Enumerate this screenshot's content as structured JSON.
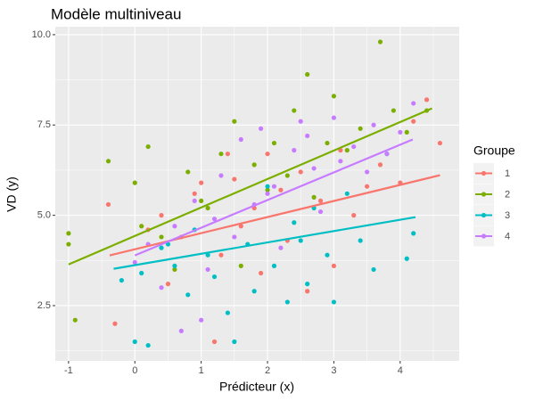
{
  "chart_data": {
    "type": "scatter",
    "title": "Modèle multiniveau",
    "x_label": "Prédicteur (x)",
    "y_label": "VD (y)",
    "legend_title": "Groupe",
    "legend": "right",
    "grid": true,
    "xlim": [
      -1.2,
      4.89
    ],
    "ylim": [
      0.97,
      10.22
    ],
    "xticks": [
      -1,
      0,
      1,
      2,
      3,
      4
    ],
    "yticks": [
      {
        "value": 2.5,
        "label": "2.5"
      },
      {
        "value": 5,
        "label": "5.0"
      },
      {
        "value": 7.5,
        "label": "7.5"
      },
      {
        "value": 10,
        "label": "10.0"
      }
    ],
    "series": [
      {
        "name": "1",
        "color": "#F8766D",
        "x": [
          -0.4,
          -0.3,
          0.2,
          0.4,
          0.5,
          0.7,
          0.9,
          1.0,
          1.2,
          1.3,
          1.5,
          1.6,
          1.8,
          1.9,
          2.0,
          2.2,
          2.3,
          2.5,
          2.6,
          2.8,
          3.0,
          3.1,
          3.3,
          3.5,
          3.7,
          4.0,
          4.2,
          4.4,
          4.6,
          1.4
        ],
        "y": [
          5.3,
          2.0,
          4.6,
          5.0,
          3.1,
          4.4,
          5.6,
          5.9,
          1.5,
          3.9,
          6.0,
          4.7,
          5.2,
          3.4,
          6.7,
          5.7,
          4.3,
          6.2,
          2.9,
          5.4,
          3.6,
          6.8,
          5.0,
          5.8,
          6.4,
          5.9,
          7.6,
          8.2,
          7.0,
          6.7
        ],
        "fit": {
          "x": [
            -0.38,
            4.6
          ],
          "y": [
            3.89,
            6.11
          ]
        }
      },
      {
        "name": "2",
        "color": "#7CAE00",
        "x": [
          -1.0,
          -1.0,
          -0.9,
          -0.4,
          0,
          0.1,
          0.2,
          0.4,
          0.6,
          0.8,
          1.0,
          1.1,
          1.3,
          1.5,
          1.6,
          1.8,
          2.0,
          2.1,
          2.3,
          2.4,
          2.6,
          2.7,
          2.9,
          3.0,
          3.2,
          3.4,
          3.7,
          3.9,
          4.1,
          4.4
        ],
        "y": [
          4.2,
          4.5,
          2.1,
          6.5,
          5.9,
          4.7,
          6.9,
          4.4,
          3.5,
          6.2,
          5.4,
          5.2,
          6.7,
          7.6,
          3.6,
          6.4,
          5.7,
          7.0,
          6.1,
          7.9,
          8.9,
          5.5,
          7.0,
          8.3,
          6.8,
          7.4,
          9.8,
          7.9,
          7.3,
          7.9
        ],
        "fit": {
          "x": [
            -1.0,
            4.48
          ],
          "y": [
            3.64,
            7.96
          ]
        }
      },
      {
        "name": "3",
        "color": "#00BFC4",
        "x": [
          -0.2,
          0,
          0.1,
          0.2,
          0.4,
          0.6,
          0.8,
          0.9,
          1.1,
          1.2,
          1.4,
          1.5,
          1.7,
          1.8,
          2.0,
          2.1,
          2.3,
          2.4,
          2.6,
          2.7,
          2.9,
          3.0,
          3.2,
          3.4,
          3.6,
          3.8,
          4.1,
          4.2,
          0.5,
          2.5
        ],
        "y": [
          3.2,
          1.5,
          3.4,
          1.4,
          4.1,
          3.6,
          2.8,
          4.6,
          3.9,
          3.3,
          2.3,
          1.5,
          4.2,
          2.9,
          5.8,
          3.6,
          2.6,
          4.8,
          3.1,
          5.2,
          3.9,
          2.6,
          5.6,
          4.3,
          3.5,
          6.7,
          3.8,
          4.5,
          4.2,
          4.3
        ],
        "fit": {
          "x": [
            -0.32,
            4.23
          ],
          "y": [
            3.52,
            4.95
          ]
        }
      },
      {
        "name": "4",
        "color": "#C77CFF",
        "x": [
          0,
          0.2,
          0.4,
          0.6,
          0.7,
          0.9,
          1.0,
          1.2,
          1.3,
          1.5,
          1.6,
          1.8,
          1.9,
          2.1,
          2.2,
          2.4,
          2.5,
          2.7,
          2.8,
          3.0,
          3.1,
          3.3,
          3.5,
          3.6,
          3.8,
          4.0,
          4.2,
          1.1,
          2.0,
          2.6
        ],
        "y": [
          3.7,
          4.2,
          3.0,
          4.7,
          1.8,
          5.4,
          2.1,
          4.9,
          6.1,
          4.4,
          7.1,
          5.3,
          7.4,
          5.8,
          4.1,
          6.8,
          7.6,
          6.3,
          5.1,
          7.7,
          6.5,
          6.9,
          6.2,
          7.5,
          6.7,
          7.3,
          8.1,
          3.5,
          5.6,
          7.2
        ],
        "fit": {
          "x": [
            0,
            4.19
          ],
          "y": [
            3.89,
            7.1
          ]
        }
      }
    ]
  }
}
